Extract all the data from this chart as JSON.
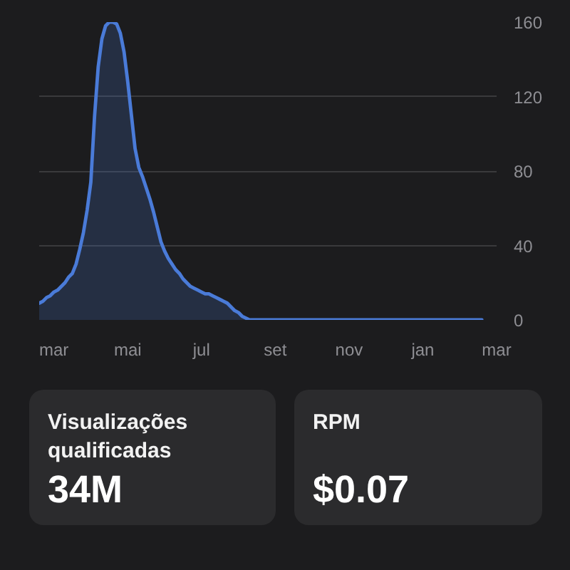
{
  "chart_data": [
    {
      "type": "area",
      "categories": [
        null,
        null,
        null,
        null,
        "mar",
        null,
        null,
        null,
        null,
        null,
        null,
        null,
        null,
        null,
        null,
        null,
        null,
        null,
        null,
        null,
        null,
        null,
        null,
        null,
        "mai",
        null,
        null,
        null,
        null,
        null,
        null,
        null,
        null,
        null,
        null,
        null,
        null,
        null,
        null,
        null,
        null,
        null,
        null,
        null,
        "jul",
        null,
        null,
        null,
        null,
        null,
        null,
        null,
        null,
        null,
        null,
        null,
        null,
        null,
        null,
        null,
        null,
        null,
        null,
        null,
        "set",
        null,
        null,
        null,
        null,
        null,
        null,
        null,
        null,
        null,
        null,
        null,
        null,
        null,
        null,
        null,
        null,
        null,
        null,
        null,
        "nov",
        null,
        null,
        null,
        null,
        null,
        null,
        null,
        null,
        null,
        null,
        null,
        null,
        null,
        null,
        null,
        null,
        null,
        null,
        null,
        "jan",
        null,
        null,
        null,
        null,
        null,
        null,
        null,
        null,
        null,
        null,
        null,
        null,
        null,
        null,
        null,
        null,
        null,
        null,
        null,
        "mar"
      ],
      "series": [
        {
          "color": "#4a7bd8",
          "values": [
            9,
            10,
            12,
            13,
            15,
            16,
            18,
            20,
            23,
            25,
            30,
            38,
            47,
            59,
            74,
            109,
            136,
            151,
            158,
            160,
            160,
            159,
            154,
            144,
            128,
            110,
            92,
            82,
            77,
            71,
            65,
            58,
            50,
            42,
            37,
            33,
            30,
            27,
            25,
            22,
            20,
            18,
            17,
            16,
            15,
            14,
            14,
            13,
            12,
            11,
            10,
            9,
            7,
            5,
            4,
            2,
            1,
            0,
            0,
            0,
            0,
            0,
            0,
            0,
            0,
            0,
            0,
            0,
            0,
            0,
            0,
            0,
            0,
            0,
            0,
            0,
            0,
            0,
            0,
            0,
            0,
            0,
            0,
            0,
            0,
            0,
            0,
            0,
            0,
            0,
            0,
            0,
            0,
            0,
            0,
            0,
            0,
            0,
            0,
            0,
            0,
            0,
            0,
            0,
            0,
            0,
            0,
            0,
            0,
            0,
            0,
            0,
            0,
            0,
            0,
            0,
            0,
            0,
            0,
            0,
            0,
            null,
            null,
            null,
            null
          ]
        }
      ],
      "ylim": [
        0,
        160
      ],
      "yticks": [
        0,
        40,
        80,
        120,
        160
      ],
      "grid": "y"
    },
    {
      "type": "other",
      "title": "Visualizações qualificadas",
      "annotations": [
        "34M"
      ]
    },
    {
      "type": "other",
      "title": "RPM",
      "annotations": [
        "$0.07"
      ]
    }
  ]
}
